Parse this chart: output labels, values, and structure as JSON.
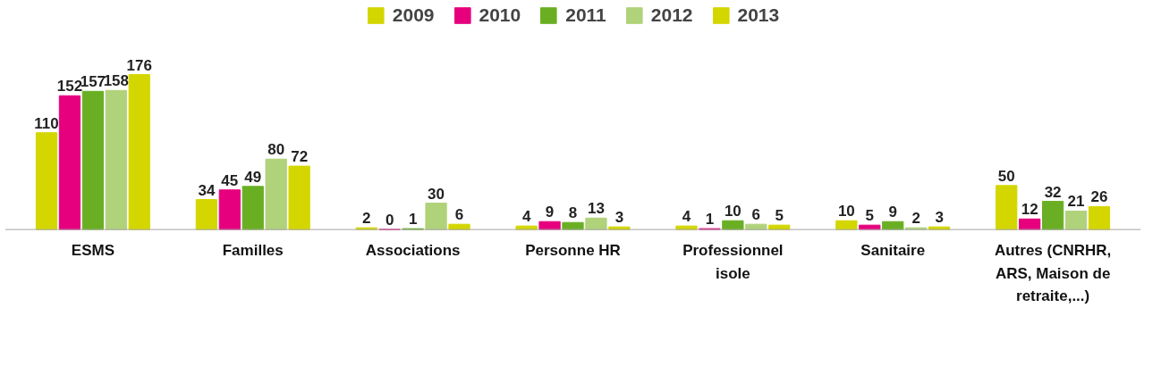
{
  "chart_data": {
    "type": "bar",
    "categories": [
      "ESMS",
      "Familles",
      "Associations",
      "Personne HR",
      "Professionnel isole",
      "Sanitaire",
      "Autres (CNRHR, ARS, Maison de retraite,...)"
    ],
    "series": [
      {
        "name": "2009",
        "color": "#d4d600",
        "values": [
          110,
          34,
          2,
          4,
          4,
          10,
          50
        ]
      },
      {
        "name": "2010",
        "color": "#e6007e",
        "values": [
          152,
          45,
          0,
          9,
          1,
          5,
          12
        ]
      },
      {
        "name": "2011",
        "color": "#6aaf23",
        "values": [
          157,
          49,
          1,
          8,
          10,
          9,
          32
        ]
      },
      {
        "name": "2012",
        "color": "#b0d27a",
        "values": [
          158,
          80,
          30,
          13,
          6,
          2,
          21
        ]
      },
      {
        "name": "2013",
        "color": "#d4d600",
        "values": [
          176,
          72,
          6,
          3,
          5,
          3,
          26
        ]
      }
    ],
    "data_labels": true,
    "legend": "top",
    "grid": false
  }
}
